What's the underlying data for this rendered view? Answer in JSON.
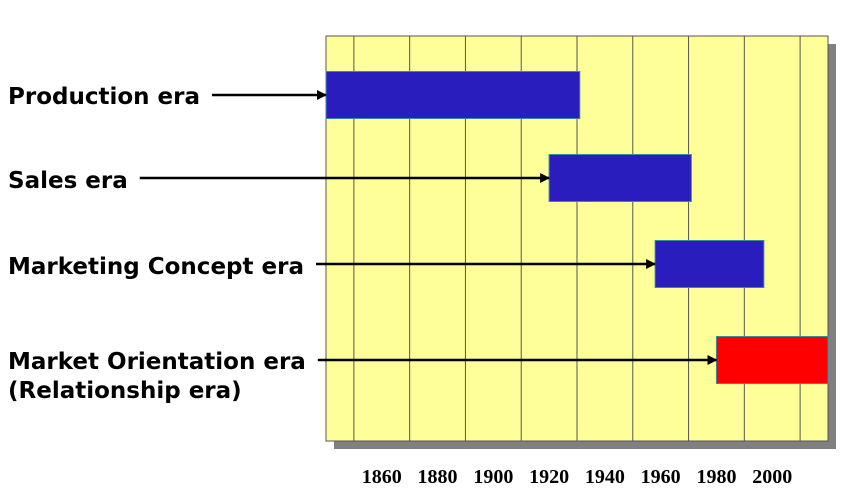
{
  "chart_data": {
    "type": "bar",
    "orientation": "horizontal",
    "xlabel": "",
    "ylabel": "",
    "x_ticks": [
      "1860",
      "1880",
      "1900",
      "1920",
      "1940",
      "1960",
      "1980",
      "2000"
    ],
    "xlim": [
      1840,
      2020
    ],
    "grid": true,
    "legend": "none",
    "colors": {
      "plot_background": "#FFFF99",
      "gridline": "#555555",
      "shadow": "#808080",
      "default_bar": "#2A1DBE",
      "bar_border": "#3a8a9a",
      "arrow": "#000000"
    },
    "series": [
      {
        "label_lines": [
          "Production era"
        ],
        "start": 1840,
        "end": 1931,
        "color": "#2A1DBE"
      },
      {
        "label_lines": [
          "Sales era"
        ],
        "start": 1920,
        "end": 1971,
        "color": "#2A1DBE"
      },
      {
        "label_lines": [
          "Marketing Concept era"
        ],
        "start": 1958,
        "end": 1997,
        "color": "#2A1DBE"
      },
      {
        "label_lines": [
          "Market Orientation era",
          "(Relationship era)"
        ],
        "start": 1980,
        "end": 2020,
        "color": "#FF0000"
      }
    ]
  }
}
